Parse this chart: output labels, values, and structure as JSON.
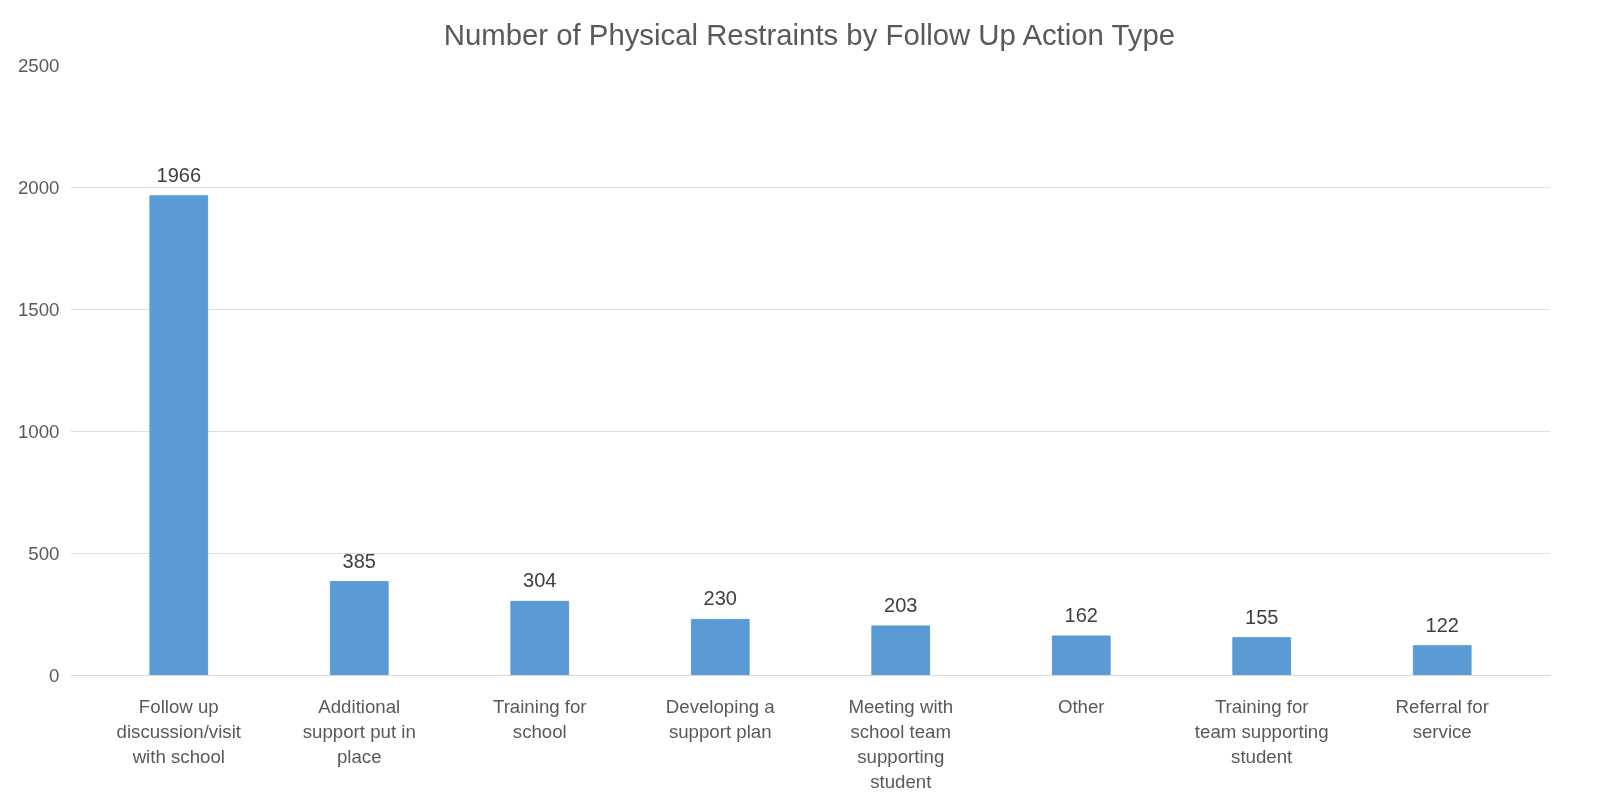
{
  "chart_data": {
    "type": "bar",
    "title": "Number of Physical Restraints by Follow Up Action Type",
    "categories": [
      "Follow up discussion/visit with school",
      "Additional support put in place",
      "Training for school",
      "Developing a support plan",
      "Meeting with school team supporting student",
      "Other",
      "Training for team supporting student",
      "Referral for service"
    ],
    "values": [
      1966,
      385,
      304,
      230,
      203,
      162,
      155,
      122
    ],
    "color": "#5b9bd5",
    "ylim": [
      0,
      2500
    ],
    "yticks": [
      0,
      500,
      1000,
      1500,
      2000,
      2500
    ],
    "grid": "y",
    "data_labels": true
  }
}
